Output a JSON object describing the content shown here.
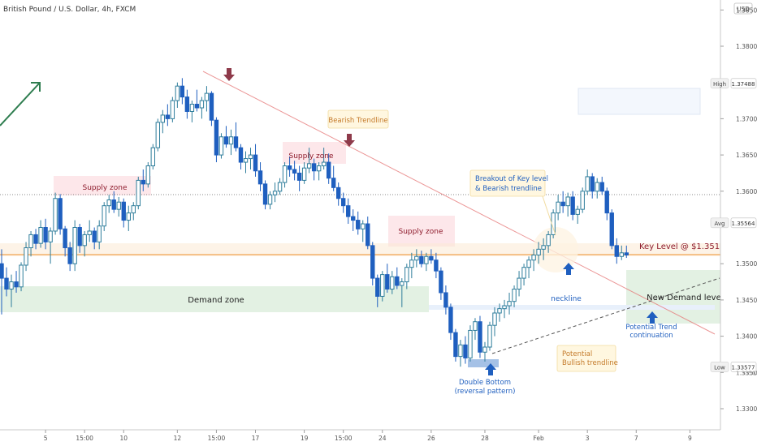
{
  "header": {
    "symbol": "British Pound / U.S. Dollar, 4h, FXCM"
  },
  "colors": {
    "up_candle": "#2e7d9b",
    "down_candle": "#1f5fbf",
    "trendline_bear": "#e57373",
    "trendline_bull": "#555555",
    "supply_fill": "#fde7ea",
    "demand_fill": "#e3f1e3",
    "key_level": "#f5c28a",
    "label_red": "#8e1b2c",
    "label_blue": "#1f5fbf",
    "arrow_green": "#2e7d4f",
    "arrow_red": "#8e3a4a"
  },
  "chart_data": {
    "type": "candlestick",
    "title": "British Pound / U.S. Dollar, 4h, FXCM",
    "xlabel": "",
    "ylabel": "",
    "currency": "USD",
    "ylim": [
      1.3248,
      1.3858
    ],
    "y_ticks": [
      {
        "value": 1.385,
        "label": "1.38500"
      },
      {
        "value": 1.38,
        "label": "1.38000"
      },
      {
        "value": 1.37,
        "label": "1.37000"
      },
      {
        "value": 1.365,
        "label": "1.36500"
      },
      {
        "value": 1.36,
        "label": "1.36000"
      },
      {
        "value": 1.35,
        "label": "1.35000"
      },
      {
        "value": 1.345,
        "label": "1.34500"
      },
      {
        "value": 1.34,
        "label": "1.34000"
      },
      {
        "value": 1.335,
        "label": "1.33500"
      },
      {
        "value": 1.33,
        "label": "1.33000"
      }
    ],
    "x_ticks": [
      {
        "index": 8,
        "label": "5"
      },
      {
        "index": 16,
        "label": "15:00"
      },
      {
        "index": 24,
        "label": "10"
      },
      {
        "index": 35,
        "label": "12"
      },
      {
        "index": 43,
        "label": "15:00"
      },
      {
        "index": 51,
        "label": "17"
      },
      {
        "index": 61,
        "label": "19"
      },
      {
        "index": 69,
        "label": "15:00"
      },
      {
        "index": 77,
        "label": "24"
      },
      {
        "index": 87,
        "label": "26"
      },
      {
        "index": 98,
        "label": "28"
      },
      {
        "index": 109,
        "label": "Feb"
      },
      {
        "index": 119,
        "label": "3"
      },
      {
        "index": 129,
        "label": "7"
      },
      {
        "index": 140,
        "label": "9"
      }
    ],
    "price_labels": [
      {
        "name": "High",
        "value": 1.37488,
        "label": "1.37488"
      },
      {
        "name": "Avg",
        "value": 1.35564,
        "label": "1.35564"
      },
      {
        "name": "Low",
        "value": 1.33577,
        "label": "1.33577"
      }
    ],
    "hidden_tick": "1.33500",
    "candles": [
      [
        1.35,
        1.352,
        1.343,
        1.348
      ],
      [
        1.348,
        1.3495,
        1.3455,
        1.3465
      ],
      [
        1.3465,
        1.3485,
        1.344,
        1.3475
      ],
      [
        1.3475,
        1.349,
        1.346,
        1.3468
      ],
      [
        1.3468,
        1.3502,
        1.3462,
        1.3498
      ],
      [
        1.3498,
        1.353,
        1.349,
        1.3522
      ],
      [
        1.3522,
        1.3545,
        1.351,
        1.354
      ],
      [
        1.354,
        1.3548,
        1.352,
        1.3528
      ],
      [
        1.3528,
        1.356,
        1.3522,
        1.355
      ],
      [
        1.355,
        1.3562,
        1.352,
        1.353
      ],
      [
        1.353,
        1.355,
        1.35,
        1.3545
      ],
      [
        1.3545,
        1.3598,
        1.354,
        1.359
      ],
      [
        1.359,
        1.3596,
        1.354,
        1.3548
      ],
      [
        1.3548,
        1.3552,
        1.351,
        1.3522
      ],
      [
        1.3522,
        1.353,
        1.349,
        1.35
      ],
      [
        1.35,
        1.356,
        1.349,
        1.355
      ],
      [
        1.355,
        1.3555,
        1.3515,
        1.3525
      ],
      [
        1.3525,
        1.3545,
        1.351,
        1.354
      ],
      [
        1.354,
        1.356,
        1.353,
        1.3545
      ],
      [
        1.3545,
        1.355,
        1.352,
        1.353
      ],
      [
        1.353,
        1.356,
        1.352,
        1.3552
      ],
      [
        1.3552,
        1.3585,
        1.3545,
        1.358
      ],
      [
        1.358,
        1.3595,
        1.357,
        1.3588
      ],
      [
        1.3588,
        1.36,
        1.357,
        1.3575
      ],
      [
        1.3575,
        1.3592,
        1.3565,
        1.3585
      ],
      [
        1.3585,
        1.359,
        1.355,
        1.356
      ],
      [
        1.356,
        1.358,
        1.3545,
        1.357
      ],
      [
        1.357,
        1.3585,
        1.356,
        1.358
      ],
      [
        1.358,
        1.362,
        1.3575,
        1.3615
      ],
      [
        1.3615,
        1.363,
        1.36,
        1.361
      ],
      [
        1.361,
        1.364,
        1.3605,
        1.3635
      ],
      [
        1.3635,
        1.3665,
        1.363,
        1.366
      ],
      [
        1.366,
        1.37,
        1.3655,
        1.3695
      ],
      [
        1.3695,
        1.3712,
        1.368,
        1.3705
      ],
      [
        1.3705,
        1.372,
        1.369,
        1.37
      ],
      [
        1.37,
        1.373,
        1.3695,
        1.3725
      ],
      [
        1.3725,
        1.375,
        1.3715,
        1.3745
      ],
      [
        1.3745,
        1.3756,
        1.372,
        1.373
      ],
      [
        1.373,
        1.374,
        1.37,
        1.371
      ],
      [
        1.371,
        1.3725,
        1.3695,
        1.372
      ],
      [
        1.372,
        1.374,
        1.371,
        1.3715
      ],
      [
        1.3715,
        1.373,
        1.37,
        1.3725
      ],
      [
        1.3725,
        1.3745,
        1.371,
        1.3735
      ],
      [
        1.3735,
        1.3738,
        1.369,
        1.3698
      ],
      [
        1.3698,
        1.3702,
        1.364,
        1.365
      ],
      [
        1.365,
        1.368,
        1.3645,
        1.3675
      ],
      [
        1.3675,
        1.369,
        1.366,
        1.3665
      ],
      [
        1.3665,
        1.3685,
        1.365,
        1.3675
      ],
      [
        1.3675,
        1.3695,
        1.3655,
        1.366
      ],
      [
        1.366,
        1.3665,
        1.363,
        1.364
      ],
      [
        1.364,
        1.3655,
        1.3625,
        1.3645
      ],
      [
        1.3645,
        1.366,
        1.363,
        1.365
      ],
      [
        1.365,
        1.3665,
        1.362,
        1.3628
      ],
      [
        1.3628,
        1.364,
        1.36,
        1.361
      ],
      [
        1.361,
        1.3615,
        1.3575,
        1.3582
      ],
      [
        1.3582,
        1.36,
        1.3575,
        1.3595
      ],
      [
        1.3595,
        1.3612,
        1.3585,
        1.36
      ],
      [
        1.36,
        1.3618,
        1.3595,
        1.3612
      ],
      [
        1.3612,
        1.364,
        1.3605,
        1.3635
      ],
      [
        1.3635,
        1.3648,
        1.362,
        1.363
      ],
      [
        1.363,
        1.3642,
        1.3615,
        1.3625
      ],
      [
        1.3625,
        1.3635,
        1.36,
        1.3615
      ],
      [
        1.3615,
        1.364,
        1.361,
        1.3632
      ],
      [
        1.3632,
        1.366,
        1.3625,
        1.3638
      ],
      [
        1.3638,
        1.3645,
        1.3615,
        1.3628
      ],
      [
        1.3628,
        1.364,
        1.3615,
        1.3635
      ],
      [
        1.3635,
        1.366,
        1.363,
        1.364
      ],
      [
        1.364,
        1.3652,
        1.361,
        1.3618
      ],
      [
        1.3618,
        1.3635,
        1.36,
        1.3605
      ],
      [
        1.3605,
        1.3612,
        1.358,
        1.359
      ],
      [
        1.359,
        1.3598,
        1.357,
        1.358
      ],
      [
        1.358,
        1.359,
        1.3555,
        1.3565
      ],
      [
        1.3565,
        1.3575,
        1.3545,
        1.356
      ],
      [
        1.356,
        1.3572,
        1.354,
        1.3548
      ],
      [
        1.3548,
        1.356,
        1.353,
        1.3555
      ],
      [
        1.3555,
        1.3565,
        1.352,
        1.3525
      ],
      [
        1.3525,
        1.353,
        1.347,
        1.348
      ],
      [
        1.348,
        1.3485,
        1.344,
        1.3455
      ],
      [
        1.3455,
        1.349,
        1.3448,
        1.3485
      ],
      [
        1.3485,
        1.35,
        1.346,
        1.3465
      ],
      [
        1.3465,
        1.349,
        1.3458,
        1.3482
      ],
      [
        1.3482,
        1.3495,
        1.3465,
        1.347
      ],
      [
        1.347,
        1.348,
        1.344,
        1.3475
      ],
      [
        1.3475,
        1.35,
        1.3465,
        1.3495
      ],
      [
        1.3495,
        1.3515,
        1.348,
        1.3505
      ],
      [
        1.3505,
        1.352,
        1.3495,
        1.351
      ],
      [
        1.351,
        1.3518,
        1.3495,
        1.35
      ],
      [
        1.35,
        1.3515,
        1.349,
        1.351
      ],
      [
        1.351,
        1.352,
        1.35,
        1.3505
      ],
      [
        1.3505,
        1.3515,
        1.348,
        1.349
      ],
      [
        1.349,
        1.3495,
        1.345,
        1.346
      ],
      [
        1.346,
        1.347,
        1.343,
        1.344
      ],
      [
        1.344,
        1.3445,
        1.3395,
        1.3405
      ],
      [
        1.3405,
        1.341,
        1.3365,
        1.3372
      ],
      [
        1.3372,
        1.3395,
        1.3358,
        1.3388
      ],
      [
        1.3388,
        1.34,
        1.3362,
        1.337
      ],
      [
        1.337,
        1.3415,
        1.3365,
        1.3408
      ],
      [
        1.3408,
        1.3425,
        1.3395,
        1.342
      ],
      [
        1.342,
        1.3428,
        1.337,
        1.3378
      ],
      [
        1.3378,
        1.3392,
        1.3365,
        1.3385
      ],
      [
        1.3385,
        1.342,
        1.338,
        1.3415
      ],
      [
        1.3415,
        1.344,
        1.34,
        1.3432
      ],
      [
        1.3432,
        1.3445,
        1.342,
        1.3438
      ],
      [
        1.3438,
        1.345,
        1.3425,
        1.3442
      ],
      [
        1.3442,
        1.346,
        1.343,
        1.3448
      ],
      [
        1.3448,
        1.347,
        1.344,
        1.3465
      ],
      [
        1.3465,
        1.349,
        1.3455,
        1.348
      ],
      [
        1.348,
        1.35,
        1.347,
        1.3495
      ],
      [
        1.3495,
        1.351,
        1.348,
        1.3505
      ],
      [
        1.3505,
        1.352,
        1.349,
        1.3512
      ],
      [
        1.3512,
        1.353,
        1.35,
        1.352
      ],
      [
        1.352,
        1.3535,
        1.3505,
        1.3525
      ],
      [
        1.3525,
        1.3545,
        1.3515,
        1.354
      ],
      [
        1.354,
        1.3575,
        1.3535,
        1.357
      ],
      [
        1.357,
        1.3595,
        1.356,
        1.3585
      ],
      [
        1.3585,
        1.36,
        1.357,
        1.358
      ],
      [
        1.358,
        1.3598,
        1.3565,
        1.3592
      ],
      [
        1.3592,
        1.36,
        1.356,
        1.3568
      ],
      [
        1.3568,
        1.358,
        1.3555,
        1.3575
      ],
      [
        1.3575,
        1.3605,
        1.357,
        1.36
      ],
      [
        1.36,
        1.363,
        1.3595,
        1.362
      ],
      [
        1.362,
        1.3625,
        1.359,
        1.36
      ],
      [
        1.36,
        1.3618,
        1.359,
        1.3612
      ],
      [
        1.3612,
        1.362,
        1.3595,
        1.36
      ],
      [
        1.36,
        1.3605,
        1.356,
        1.357
      ],
      [
        1.357,
        1.3575,
        1.352,
        1.3525
      ],
      [
        1.3525,
        1.3535,
        1.35,
        1.351
      ],
      [
        1.351,
        1.3525,
        1.3505,
        1.3515
      ],
      [
        1.3515,
        1.3525,
        1.3508,
        1.3512
      ]
    ],
    "zones": [
      {
        "name": "Supply zone",
        "kind": "supply",
        "start": 17,
        "end": 47,
        "top": 1.3613,
        "bottom": 1.3592
      },
      {
        "name": "Supply zone",
        "kind": "supply",
        "start": 87,
        "end": 88,
        "top": 1.3655,
        "bottom": 1.3632
      },
      {
        "name": "Supply zone",
        "kind": "supply",
        "start": 120,
        "end": 140,
        "top": 1.3565,
        "bottom": 1.3523
      },
      {
        "name": "Demand zone",
        "kind": "demand",
        "start": 0,
        "end": 132,
        "top": 1.3468,
        "bottom": 1.343
      },
      {
        "name": "Demand zone",
        "kind": "demand",
        "start": 193,
        "end": 215,
        "top": 1.349,
        "bottom": 1.3415
      }
    ],
    "annotations": [
      {
        "text": "Supply zone",
        "kind": "supply"
      },
      {
        "text": "Supply zone",
        "kind": "supply"
      },
      {
        "text": "Supply zone",
        "kind": "supply"
      },
      {
        "text": "Bearish Trendline",
        "kind": "note"
      },
      {
        "text": "Breakout of Key level",
        "kind": "note"
      },
      {
        "text": "& Bearish trendline",
        "kind": "note"
      },
      {
        "text": "Demand zone",
        "kind": "demand"
      },
      {
        "text": "neckline",
        "kind": "blue"
      },
      {
        "text": "New Demand level?",
        "kind": "dark"
      },
      {
        "text": "Key Level @ $1.351",
        "kind": "red"
      },
      {
        "text": "Potential Trend",
        "kind": "blue"
      },
      {
        "text": "continuation",
        "kind": "blue"
      },
      {
        "text": "Potential",
        "kind": "note"
      },
      {
        "text": "Bullish trendline",
        "kind": "note"
      },
      {
        "text": "Double Bottom",
        "kind": "blue"
      },
      {
        "text": "(reversal pattern)",
        "kind": "blue"
      }
    ],
    "key_level": {
      "value": 1.351,
      "label": "Key Level @ $1.351"
    },
    "avg_line": 1.35564,
    "neckline": 1.3445,
    "grid": false,
    "legend": "none"
  }
}
